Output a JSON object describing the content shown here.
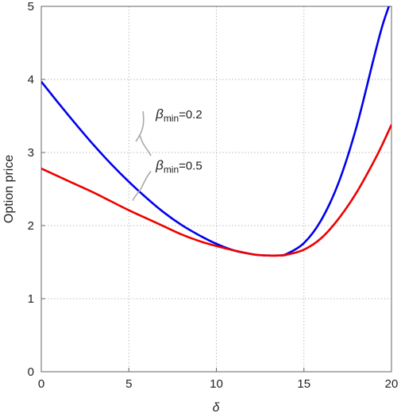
{
  "chart_data": {
    "type": "line",
    "xlabel": "δ",
    "ylabel": "Option price",
    "xlim": [
      0,
      20
    ],
    "ylim": [
      0,
      5
    ],
    "x_ticks": [
      0,
      5,
      10,
      15,
      20
    ],
    "y_ticks": [
      0,
      1,
      2,
      3,
      4,
      5
    ],
    "grid": true,
    "grid_style": "dotted",
    "legend": "none",
    "series": [
      {
        "color": "#0000ee",
        "x": [
          0,
          1,
          2,
          3,
          4,
          5,
          6,
          7,
          8,
          9,
          10,
          11,
          12,
          12.5,
          13,
          13.5,
          14,
          15,
          16,
          17,
          18,
          19,
          19.5,
          20
        ],
        "y": [
          3.97,
          3.67,
          3.38,
          3.1,
          2.84,
          2.6,
          2.38,
          2.18,
          2.01,
          1.87,
          1.75,
          1.66,
          1.61,
          1.595,
          1.59,
          1.59,
          1.61,
          1.76,
          2.08,
          2.6,
          3.35,
          4.3,
          4.75,
          5.1
        ]
      },
      {
        "color": "#ee0000",
        "x": [
          0,
          1,
          2,
          3,
          4,
          5,
          6,
          7,
          8,
          9,
          10,
          11,
          12,
          12.5,
          13,
          13.5,
          14,
          15,
          16,
          17,
          18,
          19,
          19.5,
          20
        ],
        "y": [
          2.78,
          2.67,
          2.56,
          2.45,
          2.33,
          2.21,
          2.1,
          1.99,
          1.88,
          1.79,
          1.72,
          1.66,
          1.61,
          1.595,
          1.59,
          1.59,
          1.6,
          1.67,
          1.83,
          2.1,
          2.45,
          2.88,
          3.12,
          3.38
        ]
      }
    ],
    "annotations": [
      {
        "text_main": "β",
        "text_sub": "min",
        "text_tail": "=0.2",
        "x": 5.9,
        "y": 3.52
      },
      {
        "text_main": "β",
        "text_sub": "min",
        "text_tail": "=0.5",
        "x": 5.9,
        "y": 2.82
      }
    ]
  }
}
